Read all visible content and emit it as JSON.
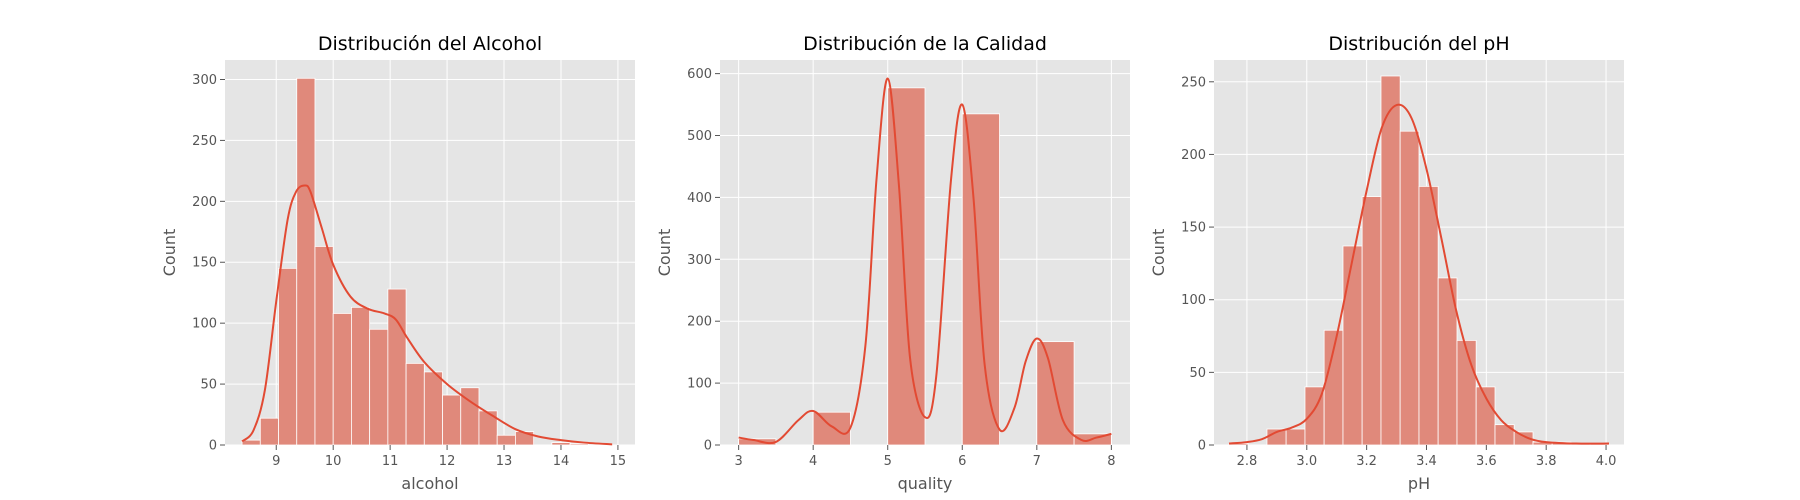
{
  "chart_data": [
    {
      "type": "bar",
      "title": "Distribución del Alcohol",
      "xlabel": "alcohol",
      "ylabel": "Count",
      "xlim": [
        8.1,
        15.3
      ],
      "ylim": [
        0,
        316
      ],
      "xticks": [
        9,
        10,
        11,
        12,
        13,
        14,
        15
      ],
      "yticks": [
        0,
        50,
        100,
        150,
        200,
        250,
        300
      ],
      "grid": true,
      "bin_edges": [
        8.4,
        8.72,
        9.04,
        9.36,
        9.68,
        10.0,
        10.32,
        10.64,
        10.96,
        11.28,
        11.6,
        11.92,
        12.24,
        12.56,
        12.88,
        13.2,
        13.52,
        13.84,
        14.16,
        14.48,
        14.8,
        14.9
      ],
      "counts": [
        4,
        22,
        145,
        301,
        163,
        108,
        113,
        95,
        128,
        67,
        60,
        41,
        47,
        28,
        8,
        11,
        0,
        2,
        1,
        0,
        1
      ],
      "kde": {
        "x": [
          8.4,
          8.6,
          8.8,
          9.0,
          9.2,
          9.35,
          9.5,
          9.6,
          9.8,
          10.0,
          10.3,
          10.6,
          10.9,
          11.1,
          11.3,
          11.6,
          12.0,
          12.4,
          12.8,
          13.2,
          13.6,
          14.0,
          14.4,
          14.9
        ],
        "y": [
          3,
          12,
          45,
          118,
          185,
          208,
          213,
          208,
          178,
          148,
          122,
          112,
          108,
          103,
          88,
          68,
          50,
          36,
          24,
          13,
          7,
          4,
          2,
          0.5
        ]
      }
    },
    {
      "type": "bar",
      "title": "Distribución de la Calidad",
      "xlabel": "quality",
      "ylabel": "Count",
      "xlim": [
        2.75,
        8.25
      ],
      "ylim": [
        0,
        622
      ],
      "xticks": [
        3,
        4,
        5,
        6,
        7,
        8
      ],
      "yticks": [
        0,
        100,
        200,
        300,
        400,
        500,
        600
      ],
      "grid": true,
      "bin_edges": [
        3.0,
        3.5,
        4.0,
        4.5,
        5.0,
        5.5,
        6.0,
        6.5,
        7.0,
        7.5,
        8.0
      ],
      "counts": [
        10,
        0,
        53,
        0,
        577,
        0,
        535,
        0,
        167,
        18
      ],
      "kde": {
        "x": [
          3.0,
          3.2,
          3.5,
          3.8,
          4.0,
          4.25,
          4.5,
          4.7,
          4.85,
          5.0,
          5.15,
          5.3,
          5.5,
          5.65,
          5.85,
          6.0,
          6.15,
          6.3,
          6.5,
          6.7,
          6.85,
          7.0,
          7.15,
          7.35,
          7.6,
          7.8,
          8.0
        ],
        "y": [
          12,
          8,
          5,
          40,
          55,
          30,
          28,
          160,
          430,
          592,
          420,
          140,
          45,
          110,
          430,
          550,
          400,
          130,
          25,
          60,
          135,
          172,
          140,
          40,
          8,
          12,
          18
        ]
      }
    },
    {
      "type": "bar",
      "title": "Distribución del pH",
      "xlabel": "pH",
      "ylabel": "Count",
      "xlim": [
        2.69,
        4.06
      ],
      "ylim": [
        0,
        265
      ],
      "xticks": [
        2.8,
        3.0,
        3.2,
        3.4,
        3.6,
        3.8,
        4.0
      ],
      "yticks": [
        0,
        50,
        100,
        150,
        200,
        250
      ],
      "grid": true,
      "bin_edges": [
        2.74,
        2.804,
        2.867,
        2.931,
        2.994,
        3.058,
        3.121,
        3.185,
        3.248,
        3.312,
        3.375,
        3.439,
        3.502,
        3.566,
        3.629,
        3.693,
        3.756,
        3.82,
        3.883,
        3.947,
        4.01
      ],
      "counts": [
        1,
        0,
        11,
        11,
        40,
        79,
        137,
        171,
        254,
        216,
        178,
        115,
        72,
        40,
        14,
        9,
        2,
        2,
        1,
        1
      ],
      "kde": {
        "x": [
          2.74,
          2.8,
          2.85,
          2.9,
          2.95,
          3.0,
          3.05,
          3.1,
          3.15,
          3.2,
          3.25,
          3.3,
          3.35,
          3.4,
          3.45,
          3.5,
          3.55,
          3.6,
          3.65,
          3.7,
          3.75,
          3.8,
          3.9,
          4.01
        ],
        "y": [
          1,
          2,
          4,
          9,
          12,
          18,
          35,
          75,
          125,
          175,
          218,
          234,
          225,
          190,
          142,
          92,
          55,
          32,
          17,
          9,
          4,
          2,
          1,
          1
        ]
      }
    }
  ]
}
